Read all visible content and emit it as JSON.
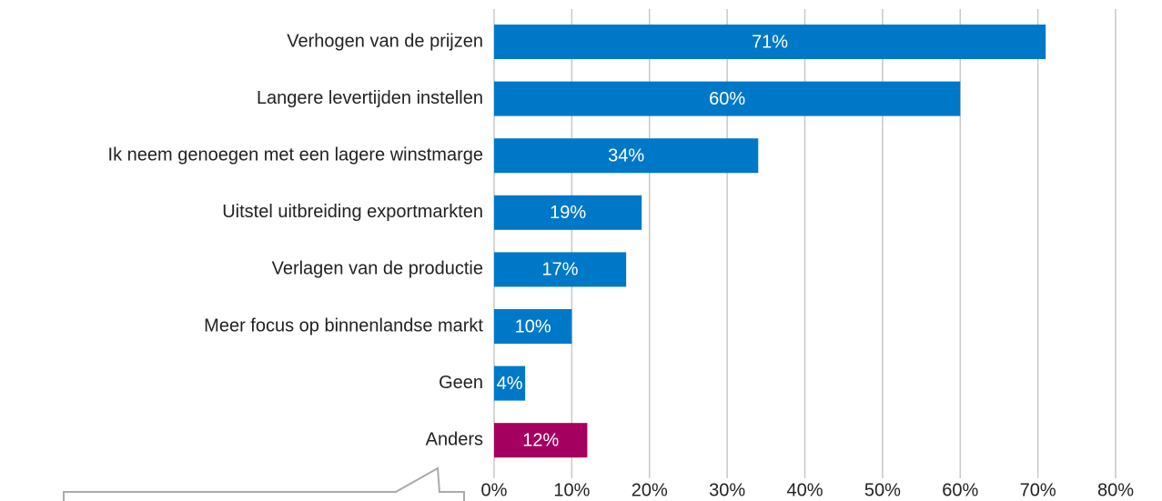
{
  "chart_data": {
    "type": "bar",
    "orientation": "horizontal",
    "categories": [
      "Verhogen van de prijzen",
      "Langere levertijden instellen",
      "Ik neem genoegen met een lagere winstmarge",
      "Uitstel uitbreiding exportmarkten",
      "Verlagen van de productie",
      "Meer focus op binnenlandse markt",
      "Geen",
      "Anders"
    ],
    "values": [
      71,
      60,
      34,
      19,
      17,
      10,
      4,
      12
    ],
    "value_labels": [
      "71%",
      "60%",
      "34%",
      "19%",
      "17%",
      "10%",
      "4%",
      "12%"
    ],
    "colors": [
      "#0078c8",
      "#0078c8",
      "#0078c8",
      "#0078c8",
      "#0078c8",
      "#0078c8",
      "#0078c8",
      "#a4005f"
    ],
    "xlim": [
      0,
      80
    ],
    "xticks": [
      {
        "value": 0,
        "label": "0%"
      },
      {
        "value": 10,
        "label": "10%"
      },
      {
        "value": 20,
        "label": "20%"
      },
      {
        "value": 30,
        "label": "30%"
      },
      {
        "value": 40,
        "label": "40%"
      },
      {
        "value": 50,
        "label": "50%"
      },
      {
        "value": 60,
        "label": "60%"
      },
      {
        "value": 70,
        "label": "70%"
      },
      {
        "value": 80,
        "label": "80%"
      }
    ],
    "grid": true
  }
}
